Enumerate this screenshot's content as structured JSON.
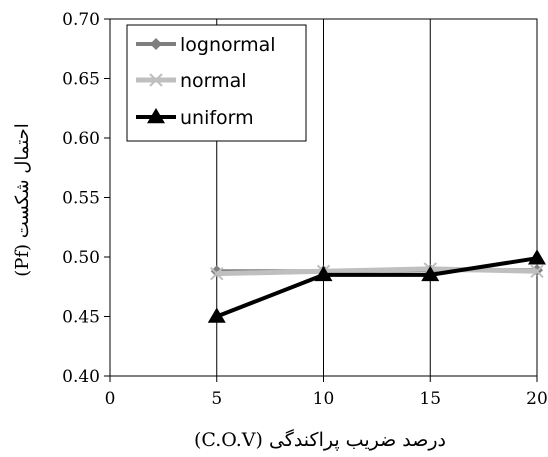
{
  "chart_data": {
    "type": "line",
    "title": "",
    "xlabel": "درصد ضریب پراکندگی (C.O.V)",
    "ylabel": "احتمال شکست (Pf)",
    "x": [
      5,
      10,
      15,
      20
    ],
    "xlim": [
      0,
      20
    ],
    "ylim": [
      0.4,
      0.7
    ],
    "xticks": [
      "0",
      "5",
      "10",
      "15",
      "20"
    ],
    "yticks": [
      "0.40",
      "0.45",
      "0.50",
      "0.55",
      "0.60",
      "0.65",
      "0.70"
    ],
    "grid": "vertical",
    "legend_position": "top-left",
    "series": [
      {
        "name": "lognormal",
        "values": [
          0.488,
          0.488,
          0.489,
          0.489
        ],
        "color": "#7f7f7f",
        "marker": "diamond"
      },
      {
        "name": "normal",
        "values": [
          0.486,
          0.488,
          0.49,
          0.488
        ],
        "color": "#bfbfbf",
        "marker": "x"
      },
      {
        "name": "uniform",
        "values": [
          0.45,
          0.485,
          0.485,
          0.499
        ],
        "color": "#000000",
        "marker": "triangle"
      }
    ]
  }
}
